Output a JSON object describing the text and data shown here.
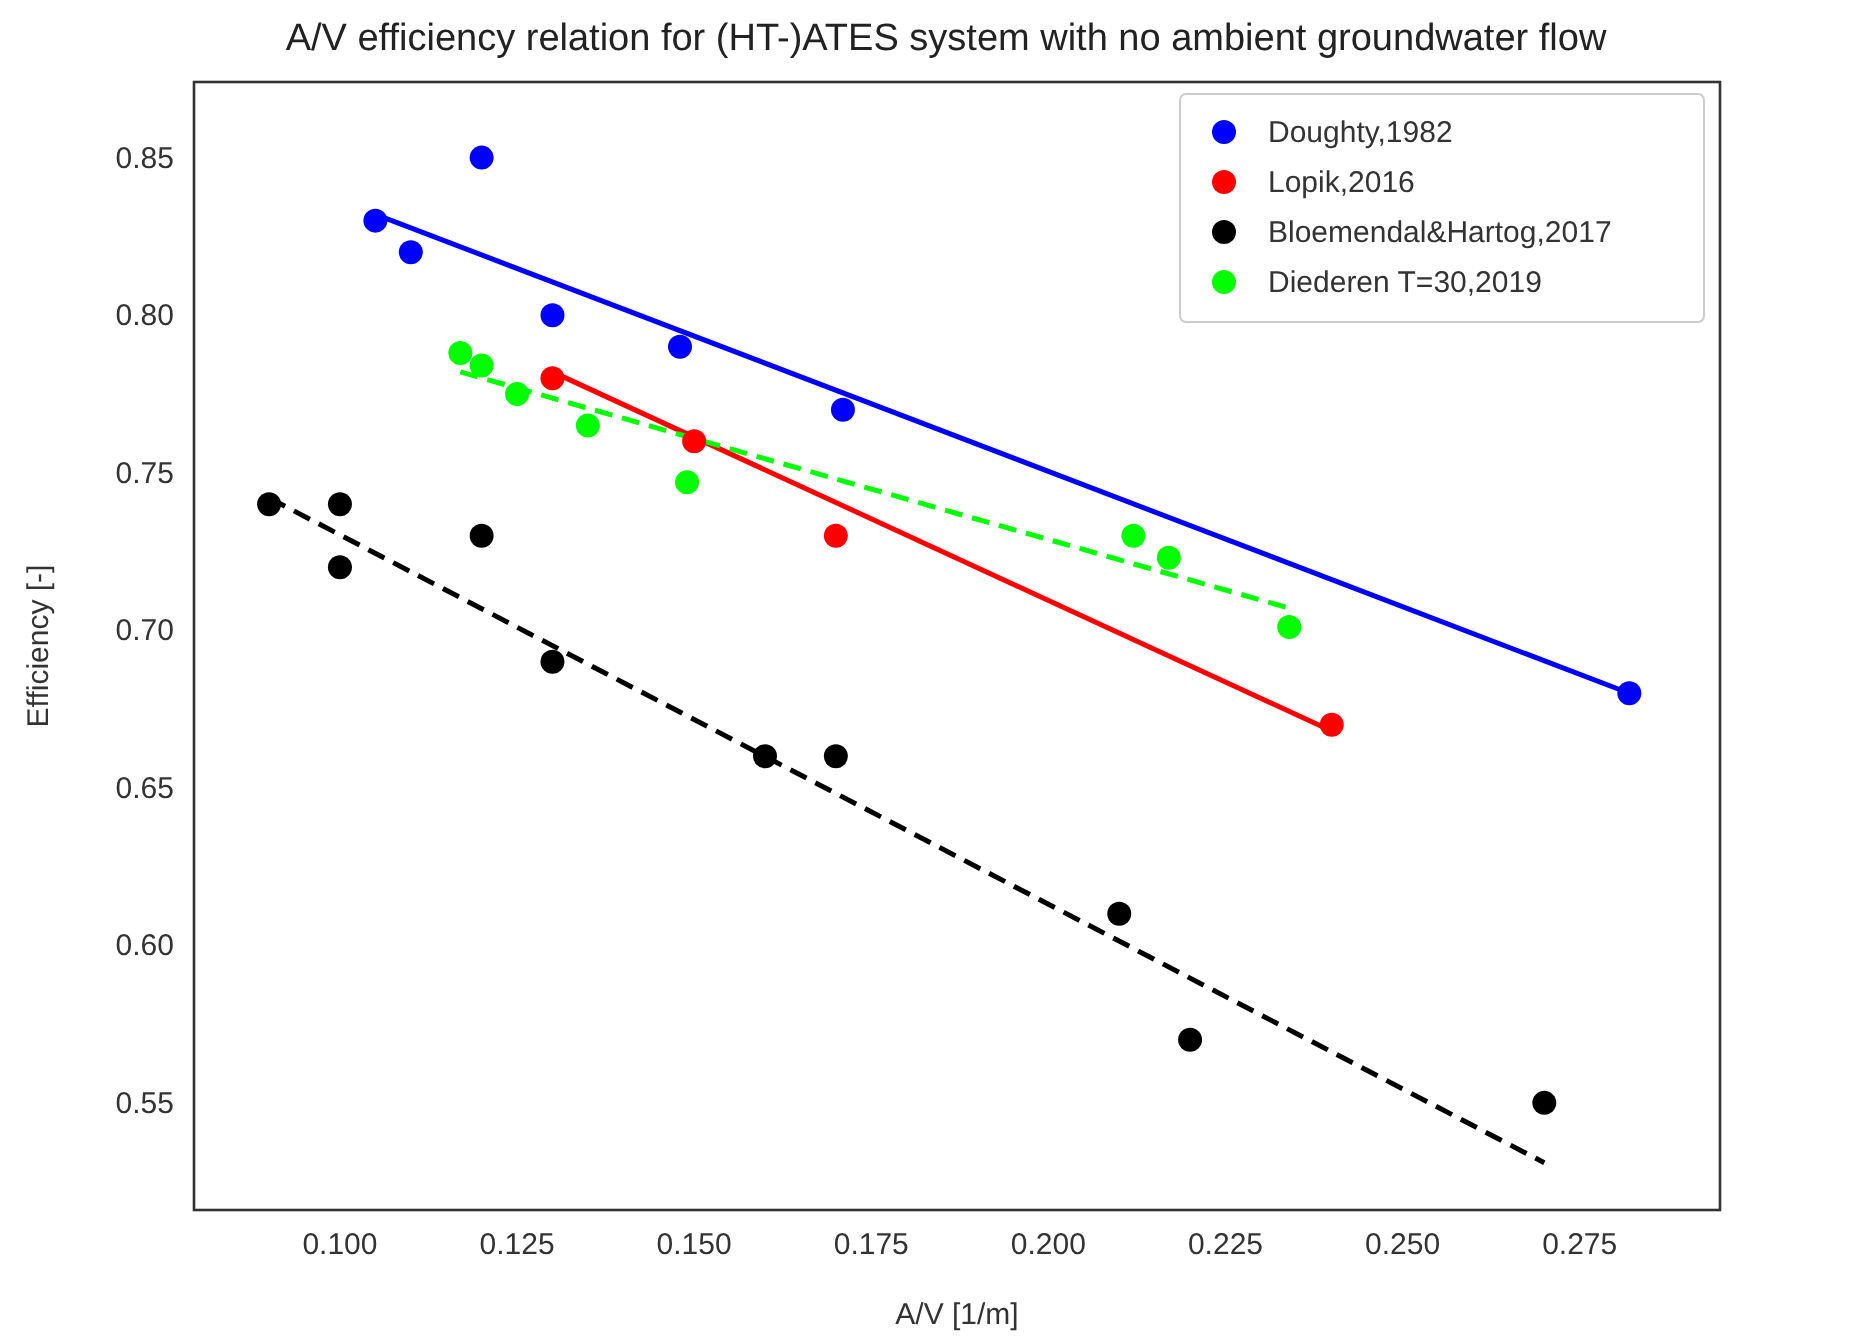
{
  "chart_data": {
    "type": "scatter",
    "title": "A/V efficiency relation for (HT-)ATES system with no ambient groundwater flow",
    "xlabel": "A/V [1/m]",
    "ylabel": "Efficiency [-]",
    "xlim": [
      0.0794,
      0.2948
    ],
    "ylim": [
      0.516,
      0.874
    ],
    "xticks": [
      {
        "value": 0.1,
        "label": "0.100"
      },
      {
        "value": 0.125,
        "label": "0.125"
      },
      {
        "value": 0.15,
        "label": "0.150"
      },
      {
        "value": 0.175,
        "label": "0.175"
      },
      {
        "value": 0.2,
        "label": "0.200"
      },
      {
        "value": 0.225,
        "label": "0.225"
      },
      {
        "value": 0.25,
        "label": "0.250"
      },
      {
        "value": 0.275,
        "label": "0.275"
      }
    ],
    "yticks": [
      {
        "value": 0.55,
        "label": "0.55"
      },
      {
        "value": 0.6,
        "label": "0.60"
      },
      {
        "value": 0.65,
        "label": "0.65"
      },
      {
        "value": 0.7,
        "label": "0.70"
      },
      {
        "value": 0.75,
        "label": "0.75"
      },
      {
        "value": 0.8,
        "label": "0.80"
      },
      {
        "value": 0.85,
        "label": "0.85"
      }
    ],
    "grid": false,
    "legend": "top right",
    "marker": "circle",
    "series": [
      {
        "type": "line",
        "marker": "none",
        "color": "#0000ff",
        "line_style": "solid",
        "x": [
          0.105,
          0.282
        ],
        "values": [
          0.832,
          0.68
        ]
      },
      {
        "type": "line",
        "marker": "none",
        "color": "#ff0000",
        "line_style": "solid",
        "x": [
          0.13,
          0.24
        ],
        "values": [
          0.782,
          0.668
        ]
      },
      {
        "type": "line",
        "marker": "none",
        "color": "#000000",
        "line_style": "dashed",
        "x": [
          0.09,
          0.27
        ],
        "values": [
          0.742,
          0.531
        ]
      },
      {
        "type": "line",
        "marker": "none",
        "color": "#00ff00",
        "line_style": "dashed",
        "x": [
          0.117,
          0.234
        ],
        "values": [
          0.782,
          0.707
        ]
      },
      {
        "name": "Doughty,1982",
        "color": "#0000ff",
        "x": [
          0.105,
          0.11,
          0.12,
          0.13,
          0.148,
          0.171,
          0.282
        ],
        "values": [
          0.83,
          0.82,
          0.85,
          0.8,
          0.79,
          0.77,
          0.68
        ]
      },
      {
        "name": "Lopik,2016",
        "color": "#ff0000",
        "x": [
          0.13,
          0.15,
          0.17,
          0.24
        ],
        "values": [
          0.78,
          0.76,
          0.73,
          0.67
        ]
      },
      {
        "name": "Bloemendal&Hartog,2017",
        "color": "#000000",
        "x": [
          0.09,
          0.1,
          0.1,
          0.12,
          0.13,
          0.16,
          0.17,
          0.21,
          0.22,
          0.27
        ],
        "values": [
          0.74,
          0.74,
          0.72,
          0.73,
          0.69,
          0.66,
          0.66,
          0.61,
          0.57,
          0.55
        ]
      },
      {
        "name": "Diederen T=30,2019",
        "color": "#00ff00",
        "x": [
          0.117,
          0.12,
          0.125,
          0.135,
          0.149,
          0.212,
          0.217,
          0.234
        ],
        "values": [
          0.788,
          0.784,
          0.775,
          0.765,
          0.747,
          0.73,
          0.723,
          0.701
        ]
      }
    ]
  }
}
